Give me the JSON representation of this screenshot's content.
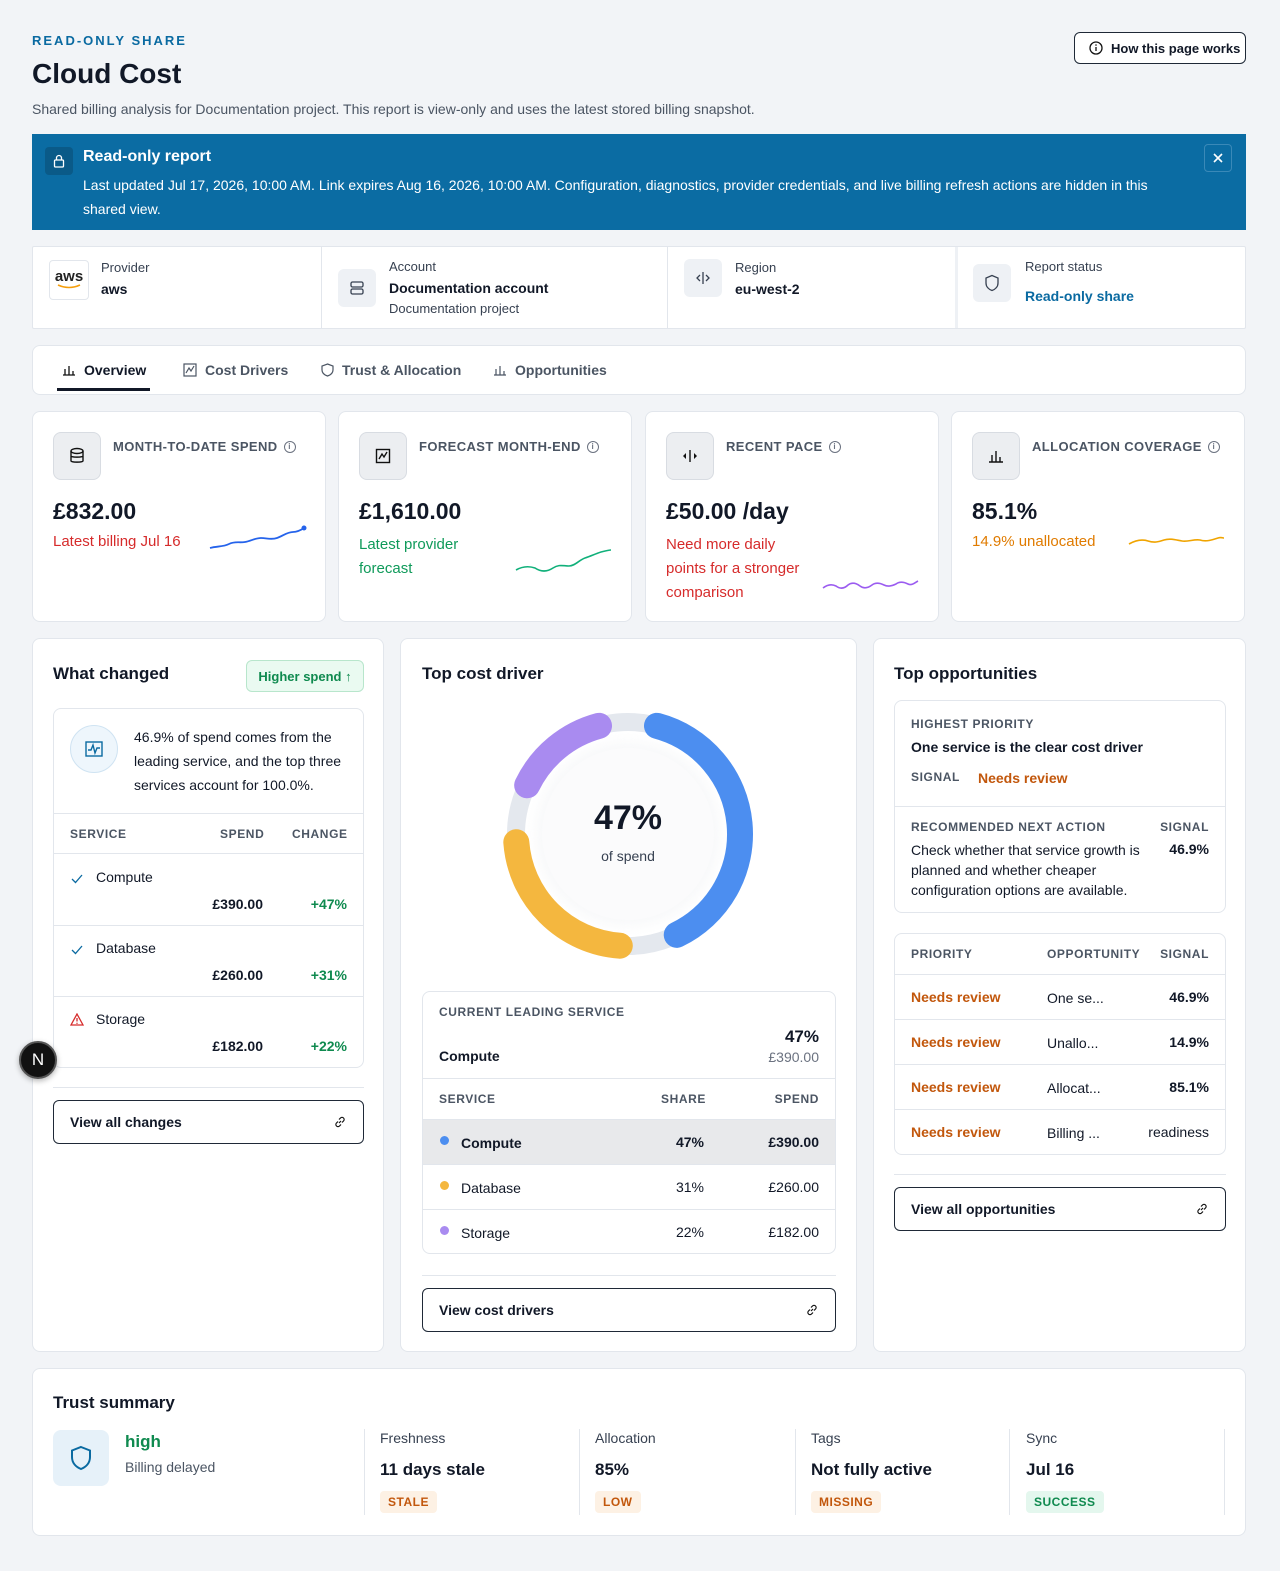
{
  "header": {
    "eyebrow": "READ-ONLY SHARE",
    "title": "Cloud Cost",
    "subtitle": "Shared billing analysis for Documentation project. This report is view-only and uses the latest stored billing snapshot.",
    "help_button": "How this page works"
  },
  "banner": {
    "title": "Read-only report",
    "text": "Last updated Jul 17, 2026, 10:00 AM. Link expires Aug 16, 2026, 10:00 AM. Configuration, diagnostics, provider credentials, and live billing refresh actions are hidden in this shared view."
  },
  "info": {
    "provider_label": "Provider",
    "provider_value": "aws",
    "provider_logo": "aws",
    "account_label": "Account",
    "account_value": "Documentation account",
    "account_sub": "Documentation project",
    "region_label": "Region",
    "region_value": "eu-west-2",
    "status_label": "Report status",
    "status_value": "Read-only share"
  },
  "tabs": [
    "Overview",
    "Cost Drivers",
    "Trust & Allocation",
    "Opportunities"
  ],
  "kpis": [
    {
      "label": "MONTH-TO-DATE SPEND",
      "value": "£832.00",
      "note": "Latest billing Jul 16",
      "color": "#2563eb"
    },
    {
      "label": "FORECAST MONTH-END",
      "value": "£1,610.00",
      "note": "Latest provider forecast",
      "color": "#10b07a"
    },
    {
      "label": "RECENT PACE",
      "value": "£50.00 /day",
      "note": "Need more daily points for a stronger comparison",
      "color": "#9b5cf0"
    },
    {
      "label": "ALLOCATION COVERAGE",
      "value": "85.1%",
      "note": "14.9% unallocated",
      "color": "#f0a400"
    }
  ],
  "changes": {
    "title": "What changed",
    "badge": "Higher spend ↑",
    "summary": "46.9% of spend comes from the leading service, and the top three services account for 100.0%.",
    "headers": [
      "SERVICE",
      "SPEND",
      "CHANGE"
    ],
    "rows": [
      {
        "service": "Compute",
        "spend": "£390.00",
        "change": "+47%",
        "status": "ok"
      },
      {
        "service": "Database",
        "spend": "£260.00",
        "change": "+31%",
        "status": "ok"
      },
      {
        "service": "Storage",
        "spend": "£182.00",
        "change": "+22%",
        "status": "warn"
      }
    ],
    "button": "View all changes"
  },
  "driver": {
    "title": "Top cost driver",
    "center_value": "47%",
    "center_label": "of spend",
    "leading_label": "CURRENT LEADING SERVICE",
    "leading_service": "Compute",
    "leading_pct": "47%",
    "leading_spend": "£390.00",
    "headers": [
      "SERVICE",
      "SHARE",
      "SPEND"
    ],
    "rows": [
      {
        "service": "Compute",
        "share": "47%",
        "spend": "£390.00",
        "color": "#4c8ef0"
      },
      {
        "service": "Database",
        "share": "31%",
        "spend": "£260.00",
        "color": "#f4b73f"
      },
      {
        "service": "Storage",
        "share": "22%",
        "spend": "£182.00",
        "color": "#a98bf0"
      }
    ],
    "button": "View cost drivers"
  },
  "chart_data": {
    "type": "pie",
    "categories": [
      "Compute",
      "Database",
      "Storage"
    ],
    "values": [
      47,
      31,
      22
    ],
    "title": "",
    "colors": [
      "#4c8ef0",
      "#f4b73f",
      "#a98bf0"
    ]
  },
  "opps": {
    "title": "Top opportunities",
    "priority_label": "HIGHEST PRIORITY",
    "priority_title": "One service is the clear cost driver",
    "signal_label": "SIGNAL",
    "signal_value": "Needs review",
    "next_label": "RECOMMENDED NEXT ACTION",
    "next_text": "Check whether that service growth is planned and whether cheaper configuration options are available.",
    "next_signal_label": "SIGNAL",
    "next_signal_value": "46.9%",
    "headers": [
      "PRIORITY",
      "OPPORTUNITY",
      "SIGNAL"
    ],
    "rows": [
      {
        "priority": "Needs review",
        "opportunity": "One se...",
        "signal": "46.9%"
      },
      {
        "priority": "Needs review",
        "opportunity": "Unallo...",
        "signal": "14.9%"
      },
      {
        "priority": "Needs review",
        "opportunity": "Allocat...",
        "signal": "85.1%"
      },
      {
        "priority": "Needs review",
        "opportunity": "Billing ...",
        "signal": "readiness"
      }
    ],
    "button": "View all opportunities"
  },
  "trust": {
    "title": "Trust summary",
    "level": "high",
    "level_sub": "Billing delayed",
    "items": [
      {
        "label": "Freshness",
        "value": "11 days stale",
        "badge": "STALE"
      },
      {
        "label": "Allocation",
        "value": "85%",
        "badge": "LOW"
      },
      {
        "label": "Tags",
        "value": "Not fully active",
        "badge": "MISSING"
      },
      {
        "label": "Sync",
        "value": "Jul 16",
        "badge": "SUCCESS"
      }
    ]
  },
  "floating_avatar": "N"
}
